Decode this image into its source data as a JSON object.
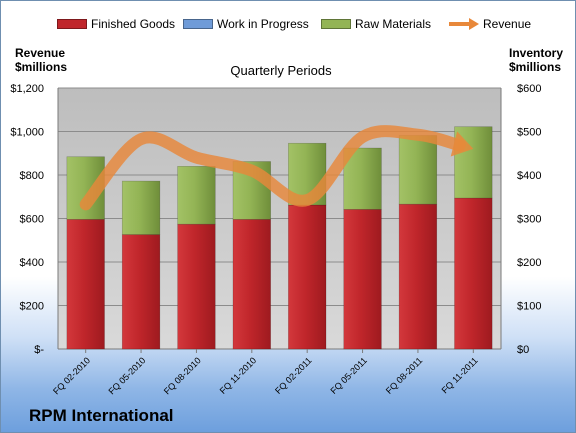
{
  "legend": {
    "finished_goods": "Finished Goods",
    "work_in_progress": "Work in Progress",
    "raw_materials": "Raw Materials",
    "revenue": "Revenue"
  },
  "axes": {
    "left_title_line1": "Revenue",
    "left_title_line2": "$millions",
    "right_title_line1": "Inventory",
    "right_title_line2": "$millions",
    "plot_title": "Quarterly Periods"
  },
  "company": "RPM International",
  "colors": {
    "finished_goods": "#c0262b",
    "work_in_progress": "#6f9bd8",
    "raw_materials": "#93b455",
    "revenue": "#e8883a",
    "plot_background": "#c9c9c9"
  },
  "chart_data": {
    "type": "bar",
    "title": "Quarterly Periods",
    "categories": [
      "FQ 02-2010",
      "FQ 05-2010",
      "FQ 08-2010",
      "FQ 11-2010",
      "FQ 02-2011",
      "FQ 05-2011",
      "FQ 08-2011",
      "FQ 11-2011"
    ],
    "left_axis": {
      "label": "Revenue $millions",
      "ylim": [
        0,
        1200
      ],
      "ticks": [
        "$-",
        "$200",
        "$400",
        "$600",
        "$800",
        "$1,000",
        "$1,200"
      ]
    },
    "right_axis": {
      "label": "Inventory $millions",
      "ylim": [
        0,
        600
      ],
      "ticks": [
        "$0",
        "$100",
        "$200",
        "$300",
        "$400",
        "$500",
        "$600"
      ]
    },
    "stacked_bars_axis": "right",
    "series": [
      {
        "name": "Finished Goods",
        "values": [
          298,
          263,
          287,
          298,
          331,
          321,
          333,
          347
        ]
      },
      {
        "name": "Work in Progress",
        "values": [
          0,
          0,
          0,
          0,
          0,
          0,
          0,
          0
        ]
      },
      {
        "name": "Raw Materials",
        "values": [
          144,
          123,
          133,
          133,
          142,
          141,
          158,
          164
        ]
      }
    ],
    "line_series": {
      "name": "Revenue",
      "axis": "left",
      "values": [
        665,
        965,
        880,
        820,
        685,
        975,
        985,
        920
      ]
    },
    "grid": true,
    "legend_position": "top"
  }
}
